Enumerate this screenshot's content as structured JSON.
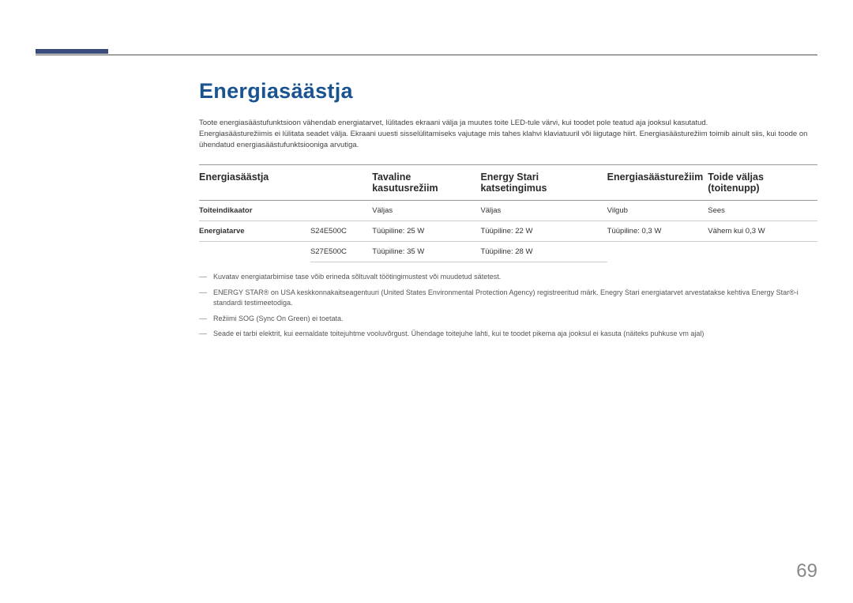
{
  "page": {
    "number": "69"
  },
  "heading": "Energiasäästja",
  "intro": {
    "p1": "Toote energiasäästufunktsioon vähendab energiatarvet, lülitades ekraani välja ja muutes toite LED-tule värvi, kui toodet pole teatud aja jooksul kasutatud.",
    "p2": "Energiasäästurežiimis ei lülitata seadet välja. Ekraani uuesti sisselülitamiseks vajutage mis tahes klahvi klaviatuuril või liigutage hiirt. Energiasäästurežiim toimib ainult siis, kui toode on ühendatud energiasäästufunktsiooniga arvutiga."
  },
  "table": {
    "headers": {
      "col1": "Energiasäästja",
      "col2": "",
      "col3": "Tavaline kasutusrežiim",
      "col4": "Energy Stari katsetingimus",
      "col5": "Energiasäästurežiim",
      "col6": "Toide väljas (toitenupp)"
    },
    "rows": [
      {
        "label": "Toiteindikaator",
        "model": "",
        "c3": "Väljas",
        "c4": "Väljas",
        "c5": "Vilgub",
        "c6": "Sees"
      },
      {
        "label": "Energiatarve",
        "model": "S24E500C",
        "c3": "Tüüpiline: 25 W",
        "c4": "Tüüpiline: 22 W",
        "c5": "Tüüpiline: 0,3 W",
        "c6": "Vähem kui 0,3 W"
      },
      {
        "label": "",
        "model": "S27E500C",
        "c3": "Tüüpiline: 35 W",
        "c4": "Tüüpiline: 28 W",
        "c5": "",
        "c6": ""
      }
    ]
  },
  "notes": {
    "n1": "Kuvatav energiatarbimise tase võib erineda sõltuvalt töötingimustest või muudetud sätetest.",
    "n2": "ENERGY STAR® on USA keskkonnakaitseagentuuri (United States Environmental Protection Agency) registreeritud märk. Enegry Stari energiatarvet arvestatakse kehtiva Energy Star®-i standardi testimeetodiga.",
    "n3": "Režiimi SOG (Sync On Green) ei toetata.",
    "n4": "Seade ei tarbi elektrit, kui eemaldate toitejuhtme vooluvõrgust. Ühendage toitejuhe lahti, kui te toodet pikema aja jooksul ei kasuta (näiteks puhkuse vm ajal)"
  },
  "styles": {
    "accent_color": "#3a4a7a",
    "heading_color": "#1a5490",
    "text_color": "#444",
    "border_color": "#999"
  }
}
